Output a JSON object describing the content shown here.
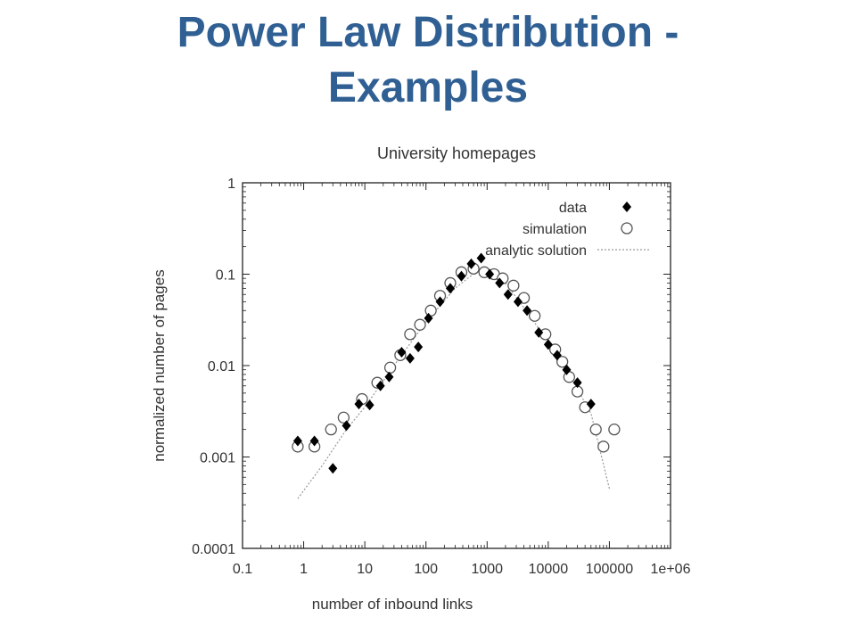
{
  "slide": {
    "title_line1": "Power Law Distribution -",
    "title_line2": "Examples"
  },
  "chart_data": {
    "type": "scatter",
    "title": "University homepages",
    "xlabel": "number of inbound links",
    "ylabel": "normalized number of pages",
    "xscale": "log",
    "yscale": "log",
    "xlim": [
      0.1,
      1000000
    ],
    "ylim": [
      0.0001,
      1
    ],
    "x_tick_labels": [
      "0.1",
      "1",
      "10",
      "100",
      "1000",
      "10000",
      "100000",
      "1e+06"
    ],
    "y_tick_labels": [
      "0.0001",
      "0.001",
      "0.01",
      "0.1",
      "1"
    ],
    "legend_position": "top-right",
    "grid": false,
    "series": [
      {
        "name": "data",
        "marker": "filled-diamond",
        "color": "#000000",
        "points": [
          [
            0.8,
            0.0015
          ],
          [
            1.5,
            0.0015
          ],
          [
            3,
            0.00075
          ],
          [
            5,
            0.0022
          ],
          [
            8,
            0.0038
          ],
          [
            12,
            0.0037
          ],
          [
            18,
            0.006
          ],
          [
            25,
            0.0075
          ],
          [
            40,
            0.014
          ],
          [
            55,
            0.012
          ],
          [
            75,
            0.016
          ],
          [
            110,
            0.033
          ],
          [
            170,
            0.05
          ],
          [
            250,
            0.07
          ],
          [
            380,
            0.095
          ],
          [
            550,
            0.13
          ],
          [
            800,
            0.15
          ],
          [
            1100,
            0.1
          ],
          [
            1600,
            0.08
          ],
          [
            2200,
            0.06
          ],
          [
            3200,
            0.05
          ],
          [
            4500,
            0.04
          ],
          [
            7000,
            0.023
          ],
          [
            10000,
            0.017
          ],
          [
            14000,
            0.013
          ],
          [
            20000,
            0.009
          ],
          [
            30000,
            0.0065
          ],
          [
            50000,
            0.0038
          ]
        ]
      },
      {
        "name": "simulation",
        "marker": "open-circle",
        "color": "#555555",
        "points": [
          [
            0.8,
            0.0013
          ],
          [
            1.5,
            0.0013
          ],
          [
            2.8,
            0.002
          ],
          [
            4.5,
            0.0027
          ],
          [
            9,
            0.0043
          ],
          [
            16,
            0.0065
          ],
          [
            26,
            0.0095
          ],
          [
            38,
            0.013
          ],
          [
            55,
            0.022
          ],
          [
            80,
            0.028
          ],
          [
            120,
            0.04
          ],
          [
            170,
            0.058
          ],
          [
            250,
            0.08
          ],
          [
            380,
            0.105
          ],
          [
            600,
            0.115
          ],
          [
            900,
            0.105
          ],
          [
            1300,
            0.1
          ],
          [
            1800,
            0.09
          ],
          [
            2700,
            0.075
          ],
          [
            4000,
            0.055
          ],
          [
            6000,
            0.035
          ],
          [
            9000,
            0.022
          ],
          [
            13000,
            0.015
          ],
          [
            17000,
            0.011
          ],
          [
            22000,
            0.0075
          ],
          [
            30000,
            0.0052
          ],
          [
            40000,
            0.0035
          ],
          [
            60000,
            0.002
          ],
          [
            80000,
            0.0013
          ],
          [
            120000,
            0.002
          ]
        ]
      },
      {
        "name": "analytic solution",
        "marker": "dotted-line",
        "color": "#999999",
        "points": [
          [
            0.8,
            0.00035
          ],
          [
            2,
            0.0008
          ],
          [
            5,
            0.002
          ],
          [
            10,
            0.0035
          ],
          [
            30,
            0.01
          ],
          [
            100,
            0.03
          ],
          [
            300,
            0.07
          ],
          [
            700,
            0.11
          ],
          [
            1000,
            0.115
          ],
          [
            2000,
            0.08
          ],
          [
            5000,
            0.035
          ],
          [
            10000,
            0.018
          ],
          [
            20000,
            0.009
          ],
          [
            50000,
            0.003
          ],
          [
            100000,
            0.00045
          ]
        ]
      }
    ]
  }
}
